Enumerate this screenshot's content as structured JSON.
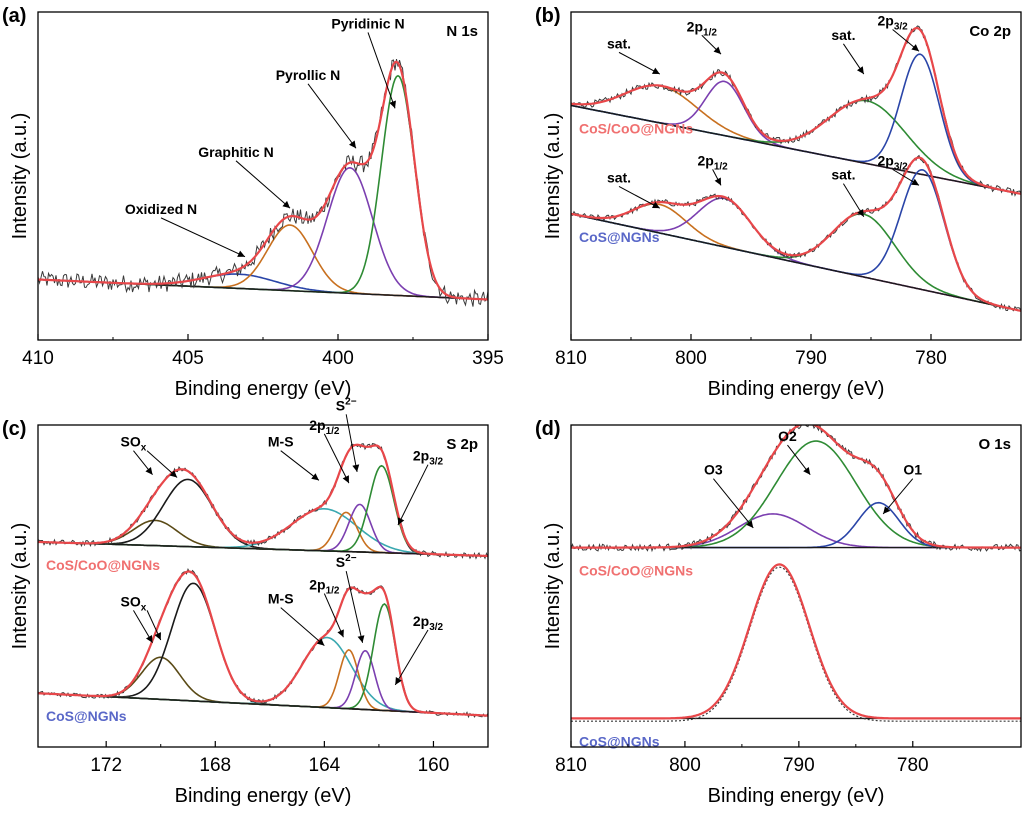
{
  "colors": {
    "red": "#e8474a",
    "green": "#2e8b34",
    "purple": "#7b3fb0",
    "orange": "#c8701f",
    "blue": "#2a45a8",
    "black": "#1a1a1a",
    "exp": "#3a3a3a",
    "teal": "#3aa8b0",
    "olive": "#5a4a16",
    "pink_label": "#f07070",
    "blue_label": "#5a68c8"
  },
  "chart_data": [
    {
      "panel": "(a)",
      "type": "line",
      "title": "N 1s",
      "xlabel": "Binding energy (eV)",
      "ylabel": "Intensity (a.u.)",
      "xlim": [
        410,
        395
      ],
      "xticks": [
        410,
        405,
        400,
        395
      ],
      "ylim": [
        0,
        1
      ],
      "traces": [
        {
          "samples": [
            {
              "name": "",
              "offset": 0.0,
              "baseline": {
                "left": 0.12,
                "right": 0.05
              },
              "peaks": [
                {
                  "label": "Oxidized N",
                  "center": 403.3,
                  "height": 0.05,
                  "width": 1.2,
                  "color": "blue"
                },
                {
                  "label": "Graphitic N",
                  "center": 401.6,
                  "height": 0.23,
                  "width": 0.75,
                  "color": "orange"
                },
                {
                  "label": "Pyrollic N",
                  "center": 399.6,
                  "height": 0.44,
                  "width": 0.75,
                  "color": "purple"
                },
                {
                  "label": "Pyridinic N",
                  "center": 398.0,
                  "height": 0.77,
                  "width": 0.55,
                  "color": "green"
                }
              ],
              "noise": 0.03
            }
          ]
        }
      ],
      "annotations": [
        {
          "text": "Oxidized N",
          "x": 405.9,
          "y": 0.35,
          "arrow_to": [
            403.1,
            0.2
          ]
        },
        {
          "text": "Graphitic N",
          "x": 403.4,
          "y": 0.55,
          "arrow_to": [
            401.6,
            0.37
          ]
        },
        {
          "text": "Pyrollic N",
          "x": 401.0,
          "y": 0.82,
          "arrow_to": [
            399.4,
            0.58
          ]
        },
        {
          "text": "Pyridinic N",
          "x": 399.0,
          "y": 1.0,
          "arrow_to": [
            398.1,
            0.72
          ]
        }
      ]
    },
    {
      "panel": "(b)",
      "type": "line",
      "title": "Co 2p",
      "xlabel": "Binding energy (eV)",
      "ylabel": "Intensity (a.u.)",
      "xlim": [
        810,
        772.5
      ],
      "xticks": [
        810,
        800,
        790,
        780
      ],
      "ylim": [
        0,
        1
      ],
      "traces": [
        {
          "samples": [
            {
              "name": "CoS/CoO@NGNs",
              "label_color": "pink_label",
              "offset": 0.6,
              "baseline": {
                "left": 0.13,
                "right": -0.18
              },
              "peaks": [
                {
                  "label": "sat.",
                  "center": 802.5,
                  "height": 0.13,
                  "width": 3.0,
                  "color": "orange"
                },
                {
                  "label": "2p1/2",
                  "center": 797.2,
                  "height": 0.19,
                  "width": 1.6,
                  "color": "purple"
                },
                {
                  "label": "sat.",
                  "center": 785.3,
                  "height": 0.22,
                  "width": 3.2,
                  "color": "green"
                },
                {
                  "label": "2p3/2",
                  "center": 780.9,
                  "height": 0.42,
                  "width": 1.6,
                  "color": "blue"
                }
              ],
              "noise": 0.012
            },
            {
              "name": "CoS@NGNs",
              "label_color": "blue_label",
              "offset": 0.0,
              "baseline": {
                "left": 0.35,
                "right": 0.01
              },
              "peaks": [
                {
                  "label": "sat.",
                  "center": 802.6,
                  "height": 0.1,
                  "width": 2.2,
                  "color": "orange"
                },
                {
                  "label": "2p1/2",
                  "center": 797.2,
                  "height": 0.17,
                  "width": 2.2,
                  "color": "purple"
                },
                {
                  "label": "sat.",
                  "center": 785.6,
                  "height": 0.22,
                  "width": 2.6,
                  "color": "green"
                },
                {
                  "label": "2p3/2",
                  "center": 780.7,
                  "height": 0.42,
                  "width": 1.8,
                  "color": "blue"
                }
              ],
              "noise": 0.01
            }
          ]
        }
      ],
      "annotations": [
        {
          "text": "sat.",
          "x": 806.0,
          "y": 0.93,
          "arrow_to": [
            802.6,
            0.84
          ]
        },
        {
          "text": "2p",
          "sub": "1/2",
          "x": 799.1,
          "y": 0.99,
          "arrow_to": [
            797.5,
            0.91
          ]
        },
        {
          "text": "sat.",
          "x": 787.3,
          "y": 0.96,
          "arrow_to": [
            785.6,
            0.84
          ]
        },
        {
          "text": "2p",
          "sub": "3/2",
          "x": 783.2,
          "y": 1.01,
          "arrow_to": [
            781.0,
            0.92
          ]
        },
        {
          "text": "sat.",
          "x": 806.0,
          "y": 0.46,
          "arrow_to": [
            802.6,
            0.37
          ]
        },
        {
          "text": "2p",
          "sub": "1/2",
          "x": 798.2,
          "y": 0.52,
          "arrow_to": [
            797.5,
            0.45
          ]
        },
        {
          "text": "sat.",
          "x": 787.3,
          "y": 0.47,
          "arrow_to": [
            785.6,
            0.34
          ]
        },
        {
          "text": "2p",
          "sub": "3/2",
          "x": 783.2,
          "y": 0.52,
          "arrow_to": [
            781.0,
            0.45
          ]
        }
      ]
    },
    {
      "panel": "(c)",
      "type": "line",
      "title": "S 2p",
      "xlabel": "Binding energy (eV)",
      "ylabel": "Intensity (a.u.)",
      "xlim": [
        174.5,
        158
      ],
      "xticks": [
        172,
        168,
        164,
        160
      ],
      "ylim": [
        0,
        1
      ],
      "traces": [
        {
          "samples": [
            {
              "name": "CoS/CoO@NGNs",
              "label_color": "pink_label",
              "offset": 0.55,
              "baseline": {
                "left": 0.09,
                "right": 0.04
              },
              "peaks": [
                {
                  "label": "SOx",
                  "center": 170.2,
                  "height": 0.09,
                  "width": 0.8,
                  "color": "olive"
                },
                {
                  "label": "SOx",
                  "center": 169.0,
                  "height": 0.24,
                  "width": 0.9,
                  "color": "black"
                },
                {
                  "label": "M-S",
                  "center": 164.0,
                  "height": 0.15,
                  "width": 1.2,
                  "color": "teal"
                },
                {
                  "label": "2p1/2",
                  "center": 163.2,
                  "height": 0.14,
                  "width": 0.4,
                  "color": "orange"
                },
                {
                  "label": "S2-",
                  "center": 162.7,
                  "height": 0.17,
                  "width": 0.4,
                  "color": "purple"
                },
                {
                  "label": "2p3/2",
                  "center": 161.9,
                  "height": 0.31,
                  "width": 0.45,
                  "color": "green"
                }
              ],
              "noise": 0.01
            },
            {
              "name": "CoS@NGNs",
              "label_color": "blue_label",
              "offset": 0.0,
              "baseline": {
                "left": 0.1,
                "right": 0.02
              },
              "peaks": [
                {
                  "label": "SOx",
                  "center": 170.0,
                  "height": 0.15,
                  "width": 0.7,
                  "color": "olive"
                },
                {
                  "label": "SOx",
                  "center": 168.8,
                  "height": 0.42,
                  "width": 0.8,
                  "color": "black"
                },
                {
                  "label": "M-S",
                  "center": 163.9,
                  "height": 0.25,
                  "width": 0.9,
                  "color": "teal"
                },
                {
                  "label": "2p1/2",
                  "center": 163.1,
                  "height": 0.21,
                  "width": 0.35,
                  "color": "orange"
                },
                {
                  "label": "S2-",
                  "center": 162.5,
                  "height": 0.21,
                  "width": 0.35,
                  "color": "purple"
                },
                {
                  "label": "2p3/2",
                  "center": 161.8,
                  "height": 0.38,
                  "width": 0.4,
                  "color": "green"
                }
              ],
              "noise": 0.008
            }
          ]
        }
      ],
      "annotations": [
        {
          "text": "SO",
          "sub": "x",
          "x": 171.0,
          "y": 0.98,
          "arrow_to": [
            170.3,
            0.88
          ]
        },
        {
          "text": "",
          "x": 170.5,
          "y": 0.98,
          "arrow_to": [
            169.4,
            0.87
          ]
        },
        {
          "text": "2p",
          "sub": "1/2",
          "x": 164.0,
          "y": 1.04,
          "arrow_to": [
            163.1,
            0.85
          ]
        },
        {
          "text": "M-S",
          "x": 165.6,
          "y": 0.98,
          "arrow_to": [
            164.2,
            0.86
          ]
        },
        {
          "text": "S",
          "sup": "2−",
          "x": 163.2,
          "y": 1.11,
          "arrow_to": [
            162.8,
            0.89
          ]
        },
        {
          "text": "2p",
          "sub": "3/2",
          "x": 160.2,
          "y": 0.93,
          "arrow_to": [
            161.3,
            0.7
          ]
        },
        {
          "text": "SO",
          "sub": "x",
          "x": 171.0,
          "y": 0.41,
          "arrow_to": [
            170.3,
            0.28
          ]
        },
        {
          "text": "",
          "x": 170.5,
          "y": 0.41,
          "arrow_to": [
            170.0,
            0.29
          ]
        },
        {
          "text": "2p",
          "sub": "1/2",
          "x": 164.0,
          "y": 0.47,
          "arrow_to": [
            163.3,
            0.3
          ]
        },
        {
          "text": "M-S",
          "x": 165.6,
          "y": 0.42,
          "arrow_to": [
            164.0,
            0.27
          ]
        },
        {
          "text": "S",
          "sup": "2−",
          "x": 163.2,
          "y": 0.55,
          "arrow_to": [
            162.6,
            0.28
          ]
        },
        {
          "text": "2p",
          "sub": "3/2",
          "x": 160.2,
          "y": 0.34,
          "arrow_to": [
            161.4,
            0.13
          ]
        }
      ]
    },
    {
      "panel": "(d)",
      "type": "line",
      "title": "O 1s",
      "xlabel": "Binding energy (eV)",
      "ylabel": "Intensity (a.u.)",
      "xlim": [
        810,
        770.5
      ],
      "xticks": [
        810,
        800,
        790,
        780
      ],
      "ylim": [
        0,
        1
      ],
      "traces": [
        {
          "samples": [
            {
              "name": "CoS/CoO@NGNs",
              "label_color": "pink_label",
              "offset": 0.6,
              "baseline": {
                "left": 0.02,
                "right": 0.02
              },
              "peaks": [
                {
                  "label": "O3",
                  "center": 792.3,
                  "height": 0.12,
                  "width": 3.0,
                  "color": "purple"
                },
                {
                  "label": "O2",
                  "center": 788.5,
                  "height": 0.38,
                  "width": 3.5,
                  "color": "green"
                },
                {
                  "label": "O1",
                  "center": 783.0,
                  "height": 0.16,
                  "width": 1.8,
                  "color": "blue"
                }
              ],
              "noise": 0.012
            },
            {
              "name": "CoS@NGNs",
              "label_color": "blue_label",
              "offset": 0.0,
              "baseline": {
                "left": 0.01,
                "right": 0.01
              },
              "peaks": [
                {
                  "label": "",
                  "center": 791.7,
                  "height": 0.55,
                  "width": 2.6,
                  "color": "red"
                }
              ],
              "noise": 0.0
            }
          ]
        }
      ],
      "annotations": [
        {
          "text": "O3",
          "x": 797.5,
          "y": 0.88,
          "arrow_to": [
            794.0,
            0.69
          ]
        },
        {
          "text": "O2",
          "x": 791.0,
          "y": 1.0,
          "arrow_to": [
            789.0,
            0.88
          ]
        },
        {
          "text": "O1",
          "x": 780.0,
          "y": 0.88,
          "arrow_to": [
            782.6,
            0.74
          ]
        }
      ]
    }
  ]
}
